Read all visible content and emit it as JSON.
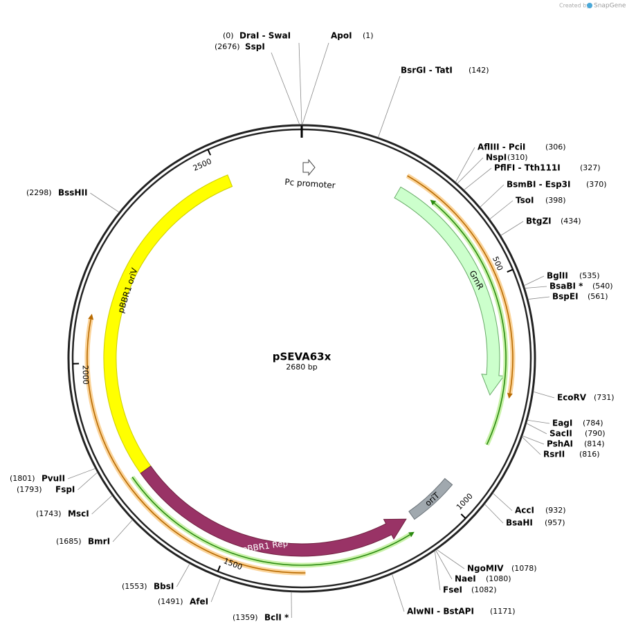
{
  "header": {
    "credit": "Created by",
    "brand": "SnapGene"
  },
  "plasmid": {
    "name": "pSEVA63x",
    "size": "2680 bp"
  },
  "ticks": [
    "500",
    "1000",
    "1500",
    "2000",
    "2500"
  ],
  "features": [
    {
      "label": "pBBR1 oriV"
    },
    {
      "label": "pBBR1 Rep"
    },
    {
      "label": "GmR"
    },
    {
      "label": "oriT"
    },
    {
      "label": "Pc promoter"
    }
  ],
  "sites": [
    {
      "name": "DraI - SwaI",
      "position": "(0)"
    },
    {
      "name": "SspI",
      "position": "(2676)"
    },
    {
      "name": "ApoI",
      "position": "(1)"
    },
    {
      "name": "BsrGI - TatI",
      "position": "(142)"
    },
    {
      "name": "AflIII - PciI",
      "position": "(306)"
    },
    {
      "name": "NspI",
      "position": "(310)"
    },
    {
      "name": "PflFI - Tth111I",
      "position": "(327)"
    },
    {
      "name": "BsmBI - Esp3I",
      "position": "(370)"
    },
    {
      "name": "TsoI",
      "position": "(398)"
    },
    {
      "name": "BtgZI",
      "position": "(434)"
    },
    {
      "name": "BglII",
      "position": "(535)"
    },
    {
      "name": "BsaBI *",
      "position": "(540)"
    },
    {
      "name": "BspEI",
      "position": "(561)"
    },
    {
      "name": "EcoRV",
      "position": "(731)"
    },
    {
      "name": "EagI",
      "position": "(784)"
    },
    {
      "name": "SacII",
      "position": "(790)"
    },
    {
      "name": "PshAI",
      "position": "(814)"
    },
    {
      "name": "RsrII",
      "position": "(816)"
    },
    {
      "name": "AccI",
      "position": "(932)"
    },
    {
      "name": "BsaHI",
      "position": "(957)"
    },
    {
      "name": "NgoMIV",
      "position": "(1078)"
    },
    {
      "name": "NaeI",
      "position": "(1080)"
    },
    {
      "name": "FseI",
      "position": "(1082)"
    },
    {
      "name": "AlwNI - BstAPI",
      "position": "(1171)"
    },
    {
      "name": "BclI *",
      "position": "(1359)"
    },
    {
      "name": "AfeI",
      "position": "(1491)"
    },
    {
      "name": "BbsI",
      "position": "(1553)"
    },
    {
      "name": "BmrI",
      "position": "(1685)"
    },
    {
      "name": "MscI",
      "position": "(1743)"
    },
    {
      "name": "FspI",
      "position": "(1793)"
    },
    {
      "name": "PvuII",
      "position": "(1801)"
    },
    {
      "name": "BssHII",
      "position": "(2298)"
    }
  ]
}
